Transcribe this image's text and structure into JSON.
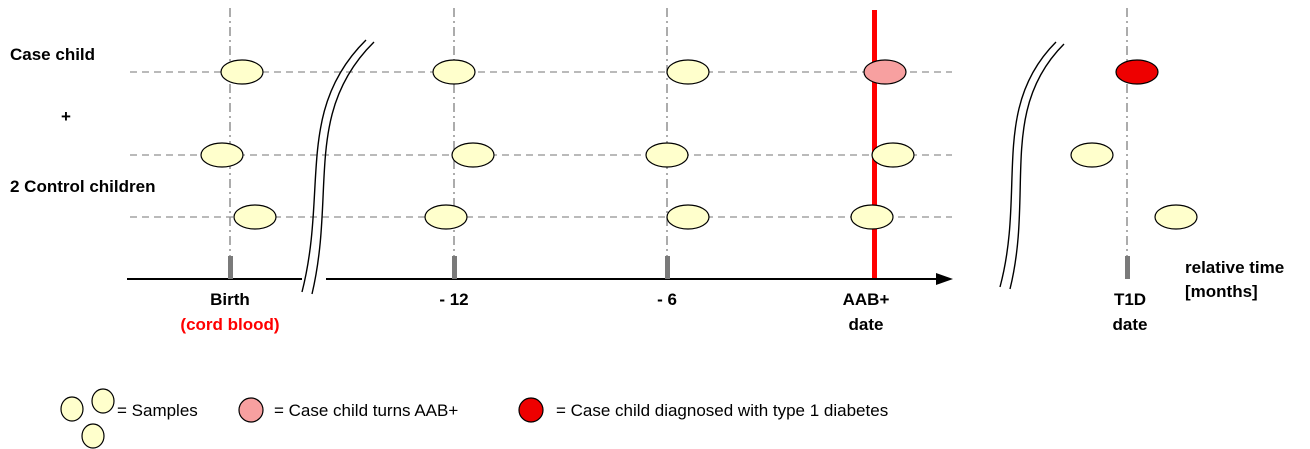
{
  "labels": {
    "case_child": "Case child",
    "plus": "+",
    "control_children": "2 Control children",
    "axis_unit_line1": "relative time",
    "axis_unit_line2": "[months]"
  },
  "timepoints": [
    {
      "id": "birth",
      "line1": "Birth",
      "line2": "(cord blood)"
    },
    {
      "id": "minus12",
      "line1": "- 12",
      "line2": ""
    },
    {
      "id": "minus6",
      "line1": "- 6",
      "line2": ""
    },
    {
      "id": "aab",
      "line1": "AAB+",
      "line2": "date"
    },
    {
      "id": "t1d",
      "line1": "T1D",
      "line2": "date"
    }
  ],
  "legend": {
    "samples": "= Samples",
    "aab": "= Case child turns AAB+",
    "t1d": "= Case child diagnosed with type 1 diabetes"
  },
  "colors": {
    "sample_fill": "#ffffcc",
    "aab_fill": "#f7a0a0",
    "t1d_fill": "#ee0000",
    "highlight": "#ff0000"
  }
}
